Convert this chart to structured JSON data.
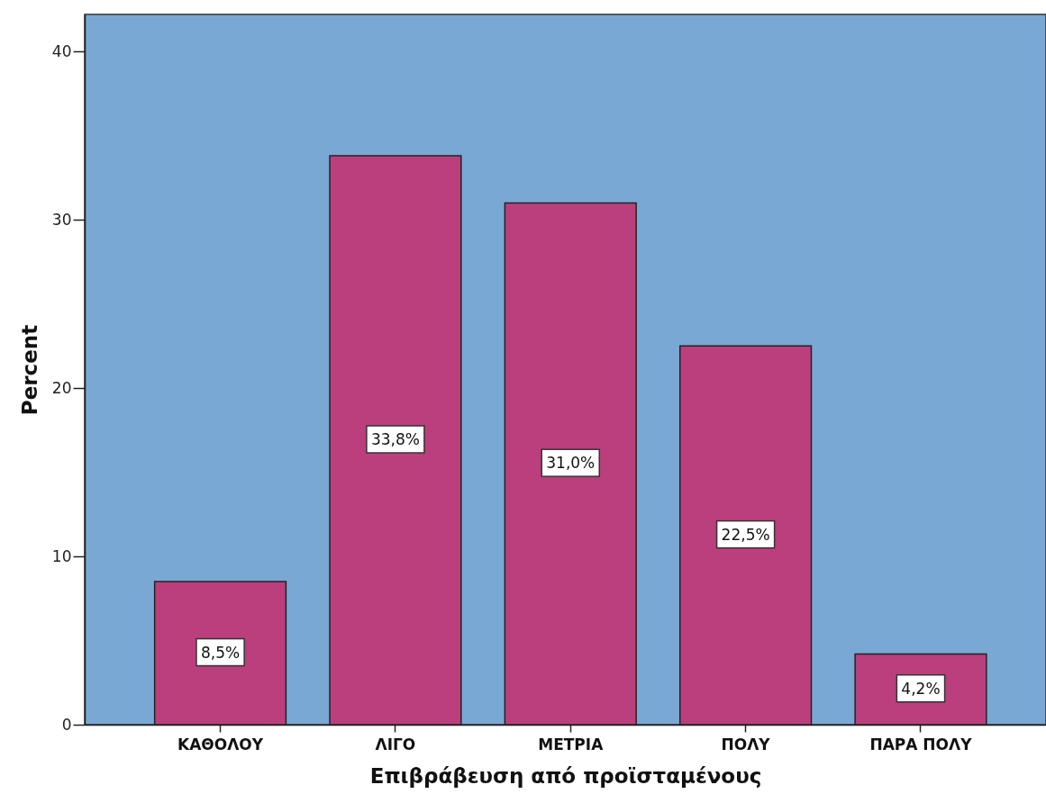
{
  "chart_data": {
    "type": "bar",
    "xlabel": "Επιβράβευση από προϊσταμένους",
    "ylabel": "Percent",
    "categories": [
      "ΚΑΘΟΛΟΥ",
      "ΛΙΓΟ",
      "ΜΕΤΡΙΑ",
      "ΠΟΛΥ",
      "ΠΑΡΑ ΠΟΛΥ"
    ],
    "values": [
      8.5,
      33.8,
      31.0,
      22.5,
      4.2
    ],
    "value_labels": [
      "8,5%",
      "33,8%",
      "31,0%",
      "22,5%",
      "4,2%"
    ],
    "color": "#bb3f7c",
    "ylim": [
      0,
      42.2
    ],
    "yticks": [
      0,
      10,
      20,
      30,
      40
    ],
    "grid": false
  }
}
